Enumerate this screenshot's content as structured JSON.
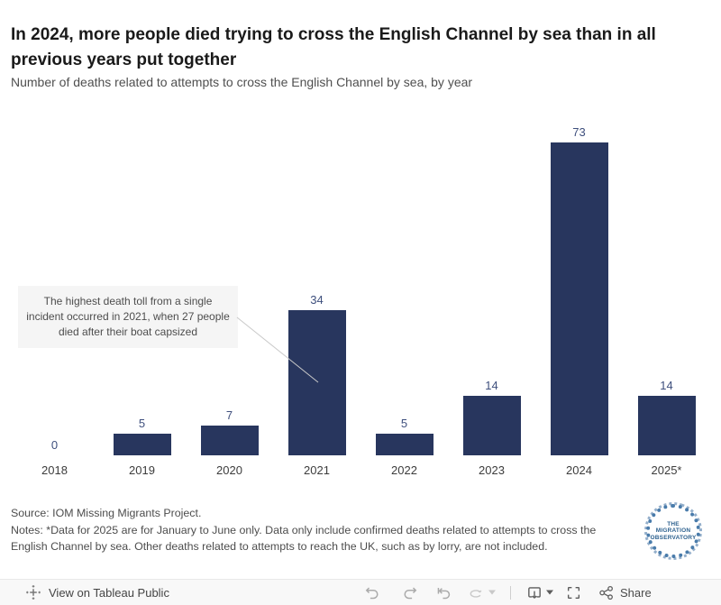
{
  "header": {
    "title_lines": [
      "In 2024, more people died trying to cross the English Channel by sea than in all",
      "previous years put together"
    ],
    "subtitle": "Number of deaths related to attempts to cross the English Channel by sea, by year"
  },
  "chart_data": {
    "type": "bar",
    "title": "Number of deaths related to attempts to cross the English Channel by sea, by year",
    "categories": [
      "2018",
      "2019",
      "2020",
      "2021",
      "2022",
      "2023",
      "2024",
      "2025*"
    ],
    "values": [
      0,
      5,
      7,
      34,
      5,
      14,
      73,
      14
    ],
    "xlabel": "",
    "ylabel": "",
    "ylim": [
      0,
      83
    ],
    "grid": false,
    "legend": false,
    "bar_color": "#28365e",
    "value_label_color": "#3e4f7d",
    "annotation_text": "The highest death toll from a single incident occurred in 2021, when 27 people died after their boat capsized"
  },
  "annotation": {
    "lines": [
      "The highest death toll from a single",
      "incident occurred in 2021, when 27 people",
      "died after their boat capsized"
    ]
  },
  "footer": {
    "source": "Source: IOM Missing Migrants Project.",
    "notes_lines": [
      "Notes: *Data for 2025 are for January to June only. Data only include confirmed deaths related to attempts to cross the",
      "English Channel by sea. Other deaths related to attempts to reach the UK, such as by lorry, are not included."
    ],
    "logo": {
      "line1": "THE",
      "line2": "MIGRATION",
      "line3": "OBSERVATORY"
    }
  },
  "toolbar": {
    "view_label": "View on Tableau Public",
    "share_label": "Share"
  },
  "colors": {
    "bar": "#28365e",
    "value_label": "#3e4f7d",
    "logo_blue": "#2d618f",
    "connector_line": "#c9c9c9",
    "icon_active": "#5c5c5c",
    "icon_disabled": "#c4c4c4"
  }
}
